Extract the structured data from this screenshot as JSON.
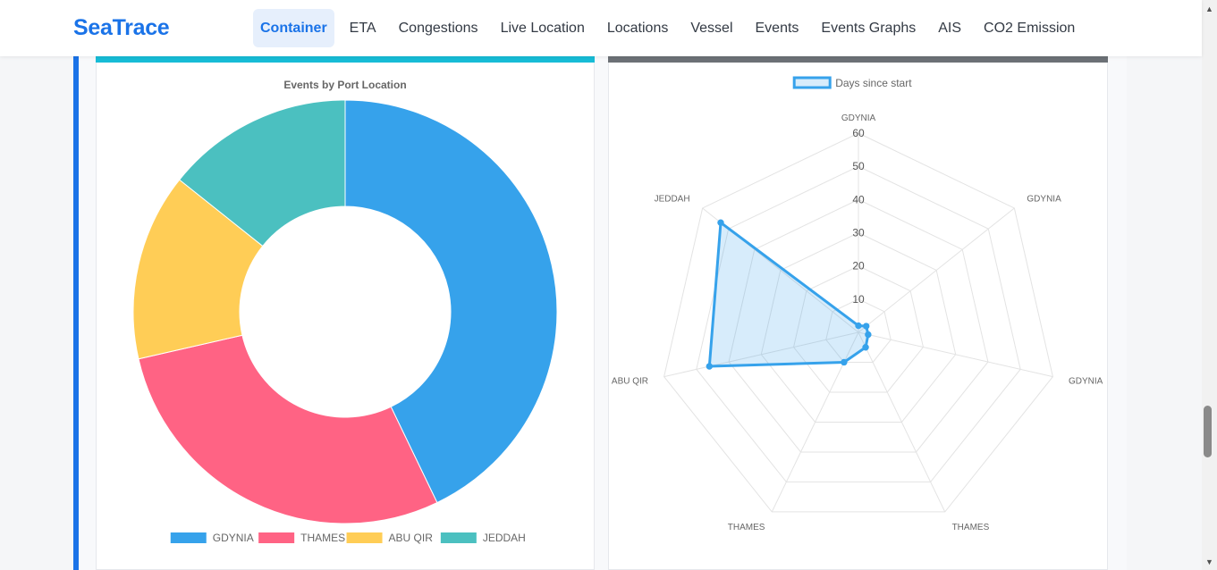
{
  "app": {
    "brand": "SeaTrace"
  },
  "nav": {
    "items": [
      {
        "label": "Container",
        "active": true
      },
      {
        "label": "ETA"
      },
      {
        "label": "Congestions"
      },
      {
        "label": "Live Location"
      },
      {
        "label": "Locations"
      },
      {
        "label": "Vessel"
      },
      {
        "label": "Events"
      },
      {
        "label": "Events Graphs"
      },
      {
        "label": "AIS"
      },
      {
        "label": "CO2 Emission"
      }
    ]
  },
  "colors": {
    "brand": "#1a73e8",
    "left_card_accent": "#17bcd6",
    "right_card_accent": "#6c7176",
    "series": [
      "#36a2eb",
      "#ff6384",
      "#ffcd56",
      "#4bc0c0"
    ]
  },
  "chart_data": [
    {
      "type": "pie",
      "variant": "doughnut",
      "title": "Events by Port Location",
      "categories": [
        "GDYNIA",
        "THAMES",
        "ABU QIR",
        "JEDDAH"
      ],
      "values": [
        3,
        2,
        1,
        1
      ],
      "legend": "bottom"
    },
    {
      "type": "radar",
      "series": [
        {
          "name": "Days since start",
          "values": [
            2,
            3,
            3,
            5,
            10,
            46,
            53
          ]
        }
      ],
      "categories": [
        "GDYNIA",
        "GDYNIA",
        "GDYNIA",
        "THAMES",
        "THAMES",
        "ABU QIR",
        "JEDDAH"
      ],
      "ticks": [
        10,
        20,
        30,
        40,
        50,
        60
      ],
      "range": [
        0,
        60
      ],
      "legend": "top",
      "grid": true
    }
  ]
}
